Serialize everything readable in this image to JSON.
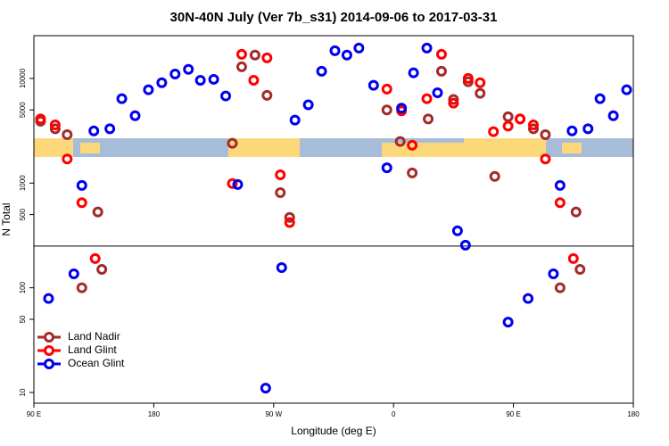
{
  "chart_data": {
    "type": "scatter",
    "title": "30N-40N July (Ver 7b_s31)   2014-09-06 to 2017-03-31",
    "xlabel": "Longitude (deg E)",
    "ylabel": "N Total",
    "xlim": [
      90,
      540
    ],
    "ylim": [
      7.9,
      25600
    ],
    "ylog": true,
    "xticks": [
      {
        "value": 90,
        "label": "90 E"
      },
      180,
      {
        "value": 270,
        "label": "90 W"
      },
      {
        "value": 360,
        "label": "0"
      },
      {
        "value": 450,
        "label": "90 E"
      },
      {
        "value": 540,
        "label": "180"
      }
    ],
    "yticks": [
      10,
      50,
      100,
      500,
      1000,
      5000,
      10000
    ],
    "hline": 250,
    "legend": "bottom-left",
    "series": [
      {
        "name": "Land Nadir",
        "color": "#a52a2a",
        "x": [
          95,
          106,
          115,
          126,
          138,
          141,
          239,
          246,
          256,
          265,
          275,
          282,
          355,
          365,
          374,
          386,
          396,
          405,
          416,
          425,
          436,
          446,
          455,
          465,
          474,
          485,
          497,
          500
        ],
        "values": [
          3900,
          3300,
          2900,
          100,
          530,
          150,
          2400,
          12900,
          16700,
          6900,
          810,
          470,
          5000,
          2500,
          1250,
          4100,
          11700,
          6300,
          9300,
          7200,
          1160,
          4300,
          4100,
          3300,
          2900,
          100,
          530,
          150
        ]
      },
      {
        "name": "Land Glint",
        "color": "#ff0000",
        "x": [
          95,
          106,
          115,
          126,
          136,
          239,
          246,
          255,
          265,
          275,
          282,
          355,
          366,
          374,
          385,
          396,
          405,
          416,
          425,
          435,
          446,
          455,
          465,
          474,
          485,
          495
        ],
        "values": [
          4100,
          3600,
          1700,
          650,
          190,
          990,
          17000,
          9600,
          15700,
          1200,
          420,
          7900,
          4900,
          2300,
          6400,
          17000,
          5800,
          10000,
          9100,
          3100,
          3500,
          4100,
          3600,
          1700,
          650,
          190
        ]
      },
      {
        "name": "Ocean Glint",
        "color": "#0000ee",
        "x": [
          101,
          120,
          126,
          135,
          147,
          156,
          166,
          176,
          186,
          196,
          206,
          215,
          225,
          234,
          243,
          264,
          276,
          286,
          296,
          306,
          316,
          325,
          334,
          345,
          355,
          366,
          375,
          385,
          393,
          408,
          414,
          446,
          461,
          480,
          485,
          494,
          506,
          515,
          525,
          535
        ],
        "values": [
          79,
          136,
          950,
          3150,
          3300,
          6400,
          4400,
          7800,
          9100,
          11000,
          12200,
          9600,
          9800,
          6800,
          970,
          11,
          156,
          4000,
          5600,
          11700,
          18400,
          16700,
          19500,
          8600,
          1400,
          5200,
          11300,
          19500,
          7300,
          350,
          255,
          47,
          79,
          136,
          950,
          3150,
          3300,
          6400,
          4400,
          7800
        ]
      }
    ]
  }
}
